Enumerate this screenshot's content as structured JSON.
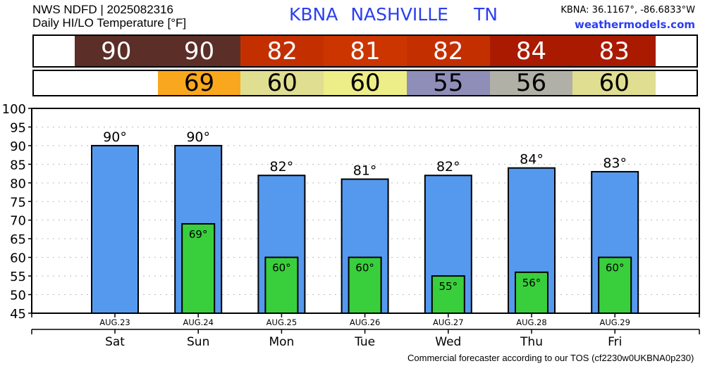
{
  "header": {
    "source_line": "NWS NDFD | 2025082316",
    "subtitle": "Daily HI/LO Temperature [°F]",
    "station_id": "KBNA",
    "station_name": "NASHVILLE",
    "state": "TN",
    "coords": "KBNA: 36.1167°, -86.6833°W",
    "site": "weathermodels.com"
  },
  "hi_band": [
    {
      "value": "90",
      "color": "#5c2e28"
    },
    {
      "value": "90",
      "color": "#5c2e28"
    },
    {
      "value": "82",
      "color": "#c42f00"
    },
    {
      "value": "81",
      "color": "#cc3500"
    },
    {
      "value": "82",
      "color": "#c42f00"
    },
    {
      "value": "84",
      "color": "#aa1a00"
    },
    {
      "value": "83",
      "color": "#aa1a00"
    }
  ],
  "lo_band": [
    {
      "value": "",
      "color": "#ffffff"
    },
    {
      "value": "69",
      "color": "#f9a81d"
    },
    {
      "value": "60",
      "color": "#e0de90"
    },
    {
      "value": "60",
      "color": "#eeee88"
    },
    {
      "value": "55",
      "color": "#8e8eb8"
    },
    {
      "value": "56",
      "color": "#b0b0a6"
    },
    {
      "value": "60",
      "color": "#e0de90"
    }
  ],
  "chart_data": {
    "type": "bar",
    "categories": [
      "Sat",
      "Sun",
      "Mon",
      "Tue",
      "Wed",
      "Thu",
      "Fri"
    ],
    "dates": [
      "AUG.23",
      "AUG.24",
      "AUG.25",
      "AUG.26",
      "AUG.27",
      "AUG.28",
      "AUG.29"
    ],
    "series": [
      {
        "name": "High",
        "values": [
          90,
          90,
          82,
          81,
          82,
          84,
          83
        ],
        "labels": [
          "90°",
          "90°",
          "82°",
          "81°",
          "82°",
          "84°",
          "83°"
        ],
        "color": "#5599ee"
      },
      {
        "name": "Low",
        "values": [
          null,
          69,
          60,
          60,
          55,
          56,
          60
        ],
        "labels": [
          "",
          "69°",
          "60°",
          "60°",
          "55°",
          "56°",
          "60°"
        ],
        "color": "#39cf3c"
      }
    ],
    "ylim": [
      45,
      100
    ],
    "yticks": [
      "45",
      "50",
      "55",
      "60",
      "65",
      "70",
      "75",
      "80",
      "85",
      "90",
      "95",
      "100"
    ],
    "grid": true
  },
  "footer": "Commercial forecaster according to our TOS (cf2230w0UKBNA0p230)"
}
